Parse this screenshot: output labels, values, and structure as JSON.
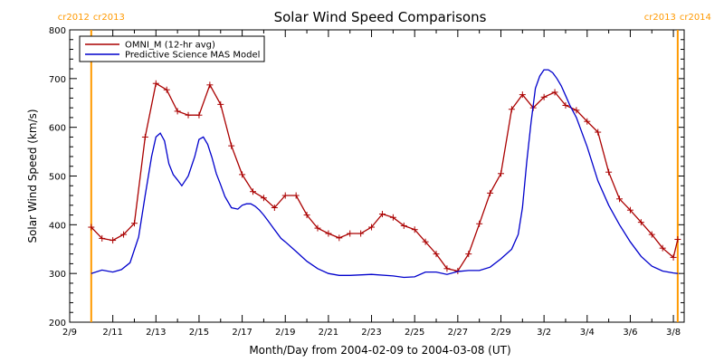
{
  "chart_data": {
    "type": "line",
    "title": "Solar Wind Speed Comparisons",
    "xlabel": "Month/Day from 2004-02-09 to 2004-03-08 (UT)",
    "ylabel": "Solar Wind Speed (km/s)",
    "ylim": [
      200,
      800
    ],
    "yticks": [
      200,
      300,
      400,
      500,
      600,
      700,
      800
    ],
    "x_start_date": "2004-02-09",
    "xlim_days": [
      0,
      28.5
    ],
    "xticks": [
      {
        "day": 0,
        "label": "2/9"
      },
      {
        "day": 2,
        "label": "2/11"
      },
      {
        "day": 4,
        "label": "2/13"
      },
      {
        "day": 6,
        "label": "2/15"
      },
      {
        "day": 8,
        "label": "2/17"
      },
      {
        "day": 10,
        "label": "2/19"
      },
      {
        "day": 12,
        "label": "2/21"
      },
      {
        "day": 14,
        "label": "2/23"
      },
      {
        "day": 16,
        "label": "2/25"
      },
      {
        "day": 18,
        "label": "2/27"
      },
      {
        "day": 20,
        "label": "2/29"
      },
      {
        "day": 22,
        "label": "3/2"
      },
      {
        "day": 24,
        "label": "3/4"
      },
      {
        "day": 26,
        "label": "3/6"
      },
      {
        "day": 28,
        "label": "3/8"
      }
    ],
    "carrington_markers": [
      {
        "day": 1.0,
        "label_left": "cr2012",
        "label_right": "cr2013",
        "color": "#ff9900"
      },
      {
        "day": 28.2,
        "label_left": "cr2013",
        "label_right": "cr2014",
        "color": "#ff9900"
      }
    ],
    "legend_position": "top-left",
    "series": [
      {
        "name": "OMNI_M (12-hr avg)",
        "color": "#aa0000",
        "marker": "plus",
        "x": [
          1.0,
          1.5,
          2.0,
          2.5,
          3.0,
          3.5,
          4.0,
          4.5,
          5.0,
          5.5,
          6.0,
          6.5,
          7.0,
          7.5,
          8.0,
          8.5,
          9.0,
          9.5,
          10.0,
          10.5,
          11.0,
          11.5,
          12.0,
          12.5,
          13.0,
          13.5,
          14.0,
          14.5,
          15.0,
          15.5,
          16.0,
          16.5,
          17.0,
          17.5,
          18.0,
          18.5,
          19.0,
          19.5,
          20.0,
          20.5,
          21.0,
          21.5,
          22.0,
          22.5,
          23.0,
          23.5,
          24.0,
          24.5,
          25.0,
          25.5,
          26.0,
          26.5,
          27.0,
          27.5,
          28.0,
          28.2
        ],
        "y": [
          395,
          372,
          368,
          380,
          403,
          580,
          690,
          677,
          633,
          625,
          625,
          687,
          647,
          562,
          503,
          468,
          455,
          435,
          460,
          460,
          420,
          393,
          382,
          373,
          382,
          382,
          395,
          422,
          415,
          398,
          390,
          365,
          340,
          310,
          305,
          340,
          402,
          465,
          505,
          637,
          667,
          640,
          662,
          672,
          645,
          635,
          612,
          590,
          508,
          453,
          430,
          405,
          380,
          352,
          333,
          370
        ]
      },
      {
        "name": "Predictive Science MAS Model",
        "color": "#0000cc",
        "x": [
          1.0,
          1.5,
          2.0,
          2.4,
          2.8,
          3.2,
          3.5,
          3.8,
          4.0,
          4.2,
          4.4,
          4.6,
          4.8,
          5.0,
          5.2,
          5.5,
          5.8,
          6.0,
          6.2,
          6.4,
          6.6,
          6.8,
          7.0,
          7.2,
          7.5,
          7.8,
          8.0,
          8.2,
          8.4,
          8.6,
          8.8,
          9.0,
          9.2,
          9.5,
          9.8,
          10.0,
          10.5,
          11.0,
          11.5,
          12.0,
          12.5,
          13.0,
          14.0,
          15.0,
          15.5,
          16.0,
          16.5,
          17.0,
          17.5,
          18.0,
          18.5,
          19.0,
          19.5,
          20.0,
          20.5,
          20.8,
          21.0,
          21.2,
          21.4,
          21.6,
          21.8,
          22.0,
          22.2,
          22.4,
          22.6,
          22.8,
          23.0,
          23.2,
          23.5,
          24.0,
          24.5,
          25.0,
          25.5,
          26.0,
          26.5,
          27.0,
          27.5,
          28.0,
          28.2
        ],
        "y": [
          300,
          307,
          303,
          308,
          322,
          375,
          460,
          540,
          580,
          588,
          572,
          525,
          503,
          492,
          480,
          500,
          540,
          575,
          580,
          565,
          538,
          505,
          482,
          458,
          435,
          432,
          440,
          443,
          443,
          438,
          430,
          420,
          408,
          390,
          372,
          365,
          345,
          325,
          310,
          300,
          296,
          296,
          298,
          295,
          292,
          293,
          303,
          303,
          298,
          304,
          306,
          306,
          313,
          330,
          350,
          380,
          435,
          530,
          610,
          680,
          705,
          718,
          718,
          712,
          700,
          685,
          665,
          645,
          620,
          560,
          490,
          440,
          400,
          365,
          335,
          315,
          305,
          301,
          300
        ]
      }
    ]
  }
}
